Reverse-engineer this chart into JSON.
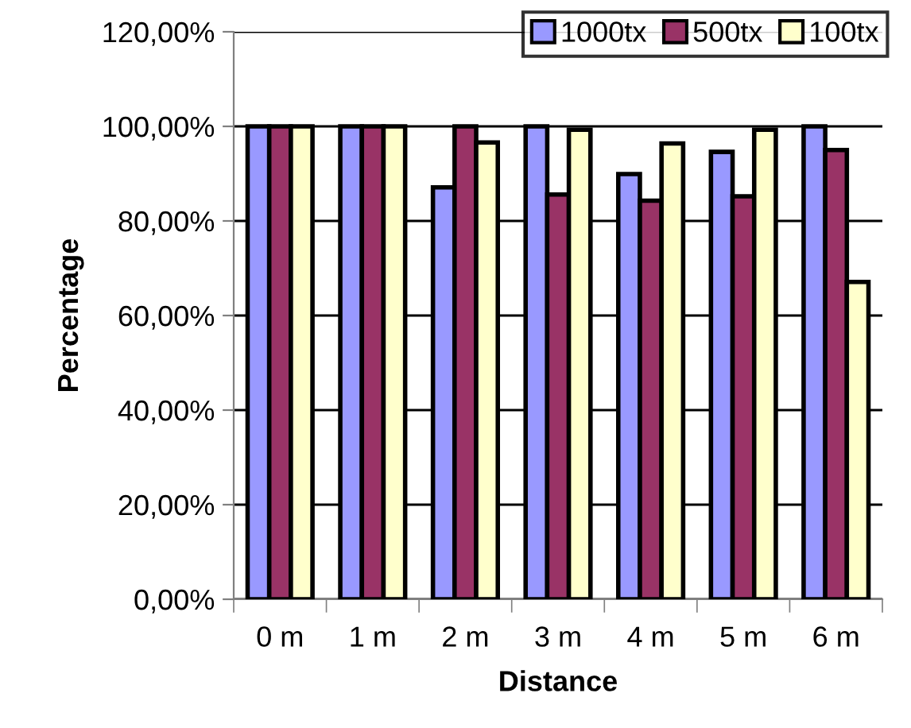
{
  "chart_data": {
    "type": "bar",
    "xlabel": "Distance",
    "ylabel": "Percentage",
    "categories": [
      "0 m",
      "1 m",
      "2 m",
      "3 m",
      "4 m",
      "5 m",
      "6 m"
    ],
    "series": [
      {
        "name": "1000tx",
        "color": "#9999ff",
        "values": [
          100,
          100,
          87.1,
          100,
          89.9,
          94.6,
          100
        ]
      },
      {
        "name": "500tx",
        "color": "#993366",
        "values": [
          100,
          100,
          100,
          85.6,
          84.3,
          85.2,
          95.0
        ]
      },
      {
        "name": "100tx",
        "color": "#ffffcc",
        "values": [
          100,
          100,
          96.6,
          99.3,
          96.4,
          99.3,
          67.1
        ]
      }
    ],
    "ylim": [
      0,
      120
    ],
    "yticks": [
      {
        "value": 0,
        "label": "0,00%"
      },
      {
        "value": 20,
        "label": "20,00%"
      },
      {
        "value": 40,
        "label": "40,00%"
      },
      {
        "value": 60,
        "label": "60,00%"
      },
      {
        "value": 80,
        "label": "80,00%"
      },
      {
        "value": 100,
        "label": "100,00%"
      },
      {
        "value": 120,
        "label": "120,00%"
      }
    ],
    "grid": "y",
    "legend": "top right"
  }
}
